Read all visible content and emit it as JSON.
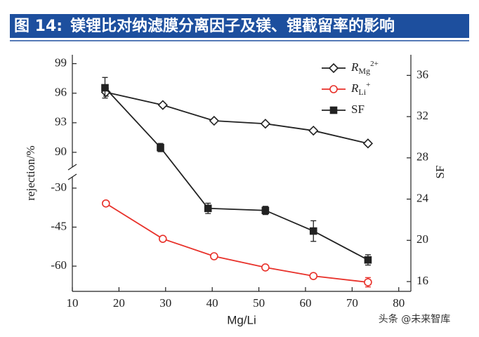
{
  "header": {
    "label": "图 14:",
    "title": "镁锂比对纳滤膜分离因子及镁、锂截留率的影响"
  },
  "watermark": "头条 @未来智库",
  "chart_data": {
    "type": "line",
    "xlabel": "Mg/Li",
    "ylabel": "rejection/%",
    "y2label": "SF",
    "xlim": [
      10,
      82.6
    ],
    "xticks": [
      10,
      20,
      30,
      40,
      50,
      60,
      70,
      80
    ],
    "y_segments": [
      {
        "ylim": [
          88.5,
          99.9
        ],
        "yticks": [
          90,
          93,
          96,
          99
        ]
      },
      {
        "ylim": [
          -69.7,
          -25.7
        ],
        "yticks": [
          -60,
          -45,
          -30
        ]
      }
    ],
    "y2lim": [
      15.05,
      38.0
    ],
    "y2ticks": [
      16,
      20,
      24,
      28,
      32,
      36
    ],
    "series": [
      {
        "name": "R",
        "name_sub": "Mg",
        "name_sup": "2+",
        "color": "#222222",
        "marker": "diamond",
        "segment": 0,
        "x": [
          17.2,
          29.4,
          40.4,
          51.4,
          61.7,
          73.4
        ],
        "values": [
          96.1,
          94.8,
          93.2,
          92.9,
          92.2,
          90.9
        ],
        "errors": [
          0.4,
          0.2,
          0.2,
          0.2,
          0.2,
          0.2
        ]
      },
      {
        "name": "R",
        "name_sub": "Li",
        "name_sup": "+",
        "color": "#e8312a",
        "marker": "circle",
        "segment": 1,
        "x": [
          17.2,
          29.4,
          40.4,
          51.4,
          61.7,
          73.4
        ],
        "values": [
          -35.9,
          -49.5,
          -56.2,
          -60.5,
          -63.8,
          -66.2
        ],
        "errors": [
          0.5,
          0.6,
          1.0,
          0.6,
          1.0,
          1.8
        ]
      },
      {
        "name": "SF",
        "color": "#222222",
        "marker": "square",
        "axis": "y2",
        "x": [
          17.0,
          28.9,
          39.1,
          51.4,
          61.7,
          73.4
        ],
        "values": [
          34.8,
          29.0,
          23.1,
          22.9,
          20.9,
          18.1
        ],
        "errors": [
          1.0,
          0.4,
          0.5,
          0.4,
          1.0,
          0.5
        ]
      }
    ]
  }
}
